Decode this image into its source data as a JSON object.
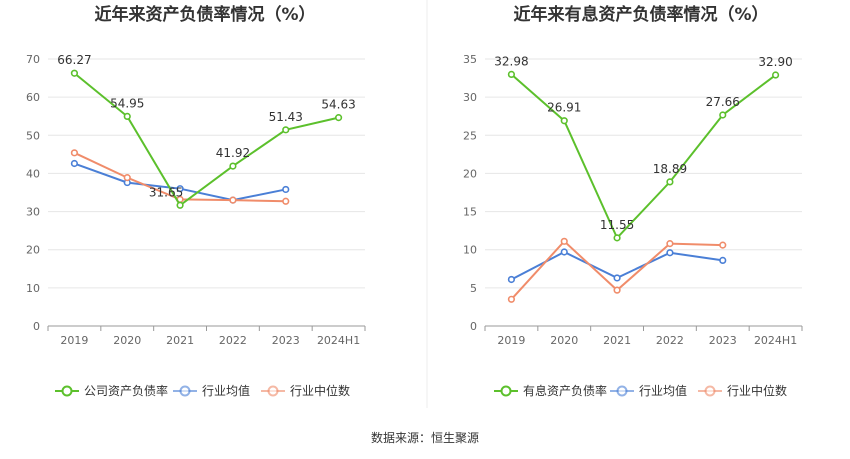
{
  "source": "数据来源：恒生聚源",
  "colors": {
    "company": "#5cc02c",
    "avg": "#4a7fd6",
    "median": "#f08c6a"
  },
  "chart_data": [
    {
      "type": "line",
      "title": "近年来资产负债率情况（%）",
      "categories": [
        "2019",
        "2020",
        "2021",
        "2022",
        "2023",
        "2024H1"
      ],
      "ylim": [
        0,
        70
      ],
      "yticks": [
        0,
        10,
        20,
        30,
        40,
        50,
        60,
        70
      ],
      "grid": true,
      "legend_position": "bottom",
      "series": [
        {
          "name": "公司资产负债率",
          "key": "company",
          "values": [
            66.27,
            54.95,
            31.65,
            41.92,
            51.43,
            54.63
          ],
          "labels": [
            "66.27",
            "54.95",
            "31.65",
            "41.92",
            "51.43",
            "54.63"
          ]
        },
        {
          "name": "行业均值",
          "key": "avg",
          "values": [
            42.6,
            37.6,
            36.0,
            33.0,
            35.8,
            null
          ]
        },
        {
          "name": "行业中位数",
          "key": "median",
          "values": [
            45.4,
            38.9,
            33.2,
            33.0,
            32.7,
            null
          ]
        }
      ]
    },
    {
      "type": "line",
      "title": "近年来有息资产负债率情况（%）",
      "categories": [
        "2019",
        "2020",
        "2021",
        "2022",
        "2023",
        "2024H1"
      ],
      "ylim": [
        0,
        35
      ],
      "yticks": [
        0,
        5,
        10,
        15,
        20,
        25,
        30,
        35
      ],
      "grid": true,
      "legend_position": "bottom",
      "series": [
        {
          "name": "有息资产负债率",
          "key": "company",
          "values": [
            32.98,
            26.91,
            11.55,
            18.89,
            27.66,
            32.9
          ],
          "labels": [
            "32.98",
            "26.91",
            "11.55",
            "18.89",
            "27.66",
            "32.90"
          ]
        },
        {
          "name": "行业均值",
          "key": "avg",
          "values": [
            6.1,
            9.7,
            6.3,
            9.6,
            8.6,
            null
          ]
        },
        {
          "name": "行业中位数",
          "key": "median",
          "values": [
            3.5,
            11.1,
            4.7,
            10.8,
            10.6,
            null
          ]
        }
      ]
    }
  ]
}
